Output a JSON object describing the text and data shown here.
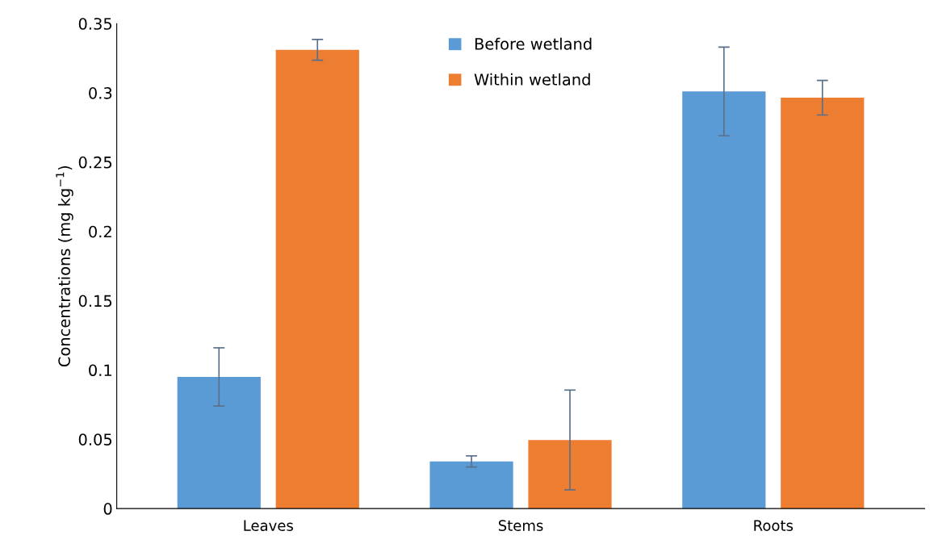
{
  "chart_data": {
    "type": "bar",
    "ylabel": "Concentrations (mg kg$^{−1}$)",
    "categories": [
      "Leaves",
      "Stems",
      "Roots"
    ],
    "series": [
      {
        "name": "Before wetland",
        "color": "#5b9bd5",
        "values": [
          0.095,
          0.034,
          0.301
        ],
        "errors": [
          0.021,
          0.004,
          0.032
        ]
      },
      {
        "name": "Within wetland",
        "color": "#ed7d31",
        "values": [
          0.331,
          0.0495,
          0.2965
        ],
        "errors": [
          0.0075,
          0.036,
          0.0125
        ]
      }
    ],
    "ylim": [
      0,
      0.35
    ],
    "yticks": [
      {
        "value": 0,
        "label": "0"
      },
      0.05,
      {
        "value": 0.1,
        "label": "0.1"
      },
      0.15,
      {
        "value": 0.2,
        "label": "0.2"
      },
      0.25,
      {
        "value": 0.3,
        "label": "0.3"
      },
      0.35
    ],
    "grid": false,
    "legend": "top"
  }
}
